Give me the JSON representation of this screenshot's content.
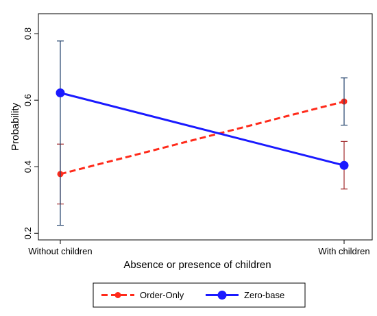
{
  "chart_data": {
    "type": "line",
    "categories": [
      "Without children",
      "With children"
    ],
    "xlabel": "Absence or presence of children",
    "ylabel": "Probability",
    "ylim": [
      0.2,
      0.8
    ],
    "yticks": [
      "0.2",
      "0.4",
      "0.6",
      "0.8"
    ],
    "grid": false,
    "legend_position": "bottom",
    "series": [
      {
        "name": "Order-Only",
        "color": "#ff2a1a",
        "errorbar_color": "#a0282a",
        "line_style": "dashed",
        "values": [
          0.378,
          0.596
        ],
        "ci_low": [
          0.288,
          0.333
        ],
        "ci_high": [
          0.468,
          0.476
        ]
      },
      {
        "name": "Zero-base",
        "color": "#1a1aff",
        "errorbar_color": "#20406a",
        "line_style": "solid",
        "values": [
          0.622,
          0.404
        ],
        "ci_low": [
          0.224,
          0.525
        ],
        "ci_high": [
          0.778,
          0.667
        ]
      }
    ]
  }
}
